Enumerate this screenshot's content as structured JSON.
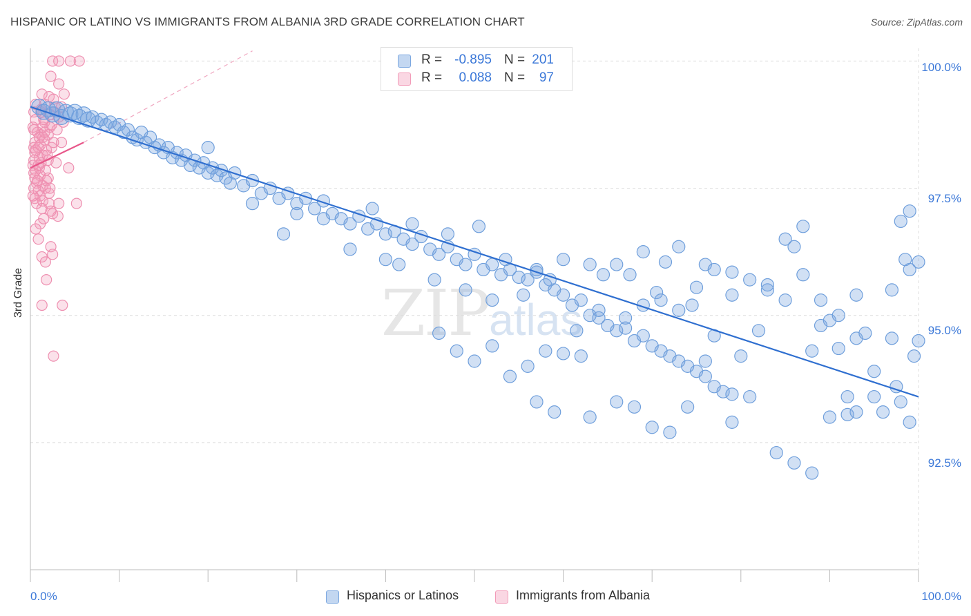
{
  "header": {
    "title": "HISPANIC OR LATINO VS IMMIGRANTS FROM ALBANIA 3RD GRADE CORRELATION CHART",
    "source": "Source: ZipAtlas.com"
  },
  "watermark": {
    "zip": "ZIP",
    "atlas": "atlas"
  },
  "legend": {
    "rows": [
      {
        "r_label": "R =",
        "r_value": "-0.895",
        "n_label": "N =",
        "n_value": "201",
        "color": "#7ba7e0"
      },
      {
        "r_label": "R =",
        "r_value": "0.088",
        "n_label": "N =",
        "n_value": "97",
        "color": "#f29bb8"
      }
    ]
  },
  "bottom_legend": {
    "series1": "Hispanics or Latinos",
    "series2": "Immigrants from Albania"
  },
  "colors": {
    "blue_fill": "rgba(123,167,224,0.35)",
    "blue_stroke": "#6f9fdc",
    "blue_line": "#2f6fd0",
    "pink_fill": "rgba(242,155,184,0.30)",
    "pink_stroke": "#ee8fb0",
    "pink_line": "#e8578a",
    "grid": "#dcdcdc",
    "tick_text": "#3b78d8"
  },
  "chart_data": {
    "type": "scatter",
    "title": "HISPANIC OR LATINO VS IMMIGRANTS FROM ALBANIA 3RD GRADE CORRELATION CHART",
    "xlabel": "",
    "ylabel": "3rd Grade",
    "xlim": [
      0,
      100
    ],
    "ylim": [
      90.0,
      100.25
    ],
    "x_tick_labels": [
      "0.0%",
      "100.0%"
    ],
    "y_ticks": [
      92.5,
      95.0,
      97.5,
      100.0
    ],
    "y_tick_labels": [
      "92.5%",
      "95.0%",
      "97.5%",
      "100.0%"
    ],
    "grid": true,
    "legend_position": "top-center",
    "series": [
      {
        "name": "Hispanics or Latinos",
        "R": -0.895,
        "N": 201,
        "trend": {
          "x": [
            0,
            100
          ],
          "y": [
            99.1,
            93.4
          ]
        },
        "points": [
          [
            1,
            99.1
          ],
          [
            1.5,
            99.0
          ],
          [
            2,
            99.05
          ],
          [
            2.5,
            98.95
          ],
          [
            3,
            99.05
          ],
          [
            3.5,
            98.9
          ],
          [
            4,
            99.0
          ],
          [
            4.5,
            98.95
          ],
          [
            5,
            99.0
          ],
          [
            5.5,
            98.9
          ],
          [
            6,
            98.95
          ],
          [
            6.5,
            98.85
          ],
          [
            7,
            98.9
          ],
          [
            7.5,
            98.8
          ],
          [
            8,
            98.85
          ],
          [
            8.5,
            98.75
          ],
          [
            9,
            98.8
          ],
          [
            9.5,
            98.7
          ],
          [
            10,
            98.75
          ],
          [
            10.5,
            98.6
          ],
          [
            11,
            98.65
          ],
          [
            11.5,
            98.5
          ],
          [
            12,
            98.45
          ],
          [
            12.5,
            98.6
          ],
          [
            13,
            98.4
          ],
          [
            13.5,
            98.5
          ],
          [
            14,
            98.3
          ],
          [
            14.5,
            98.35
          ],
          [
            15,
            98.2
          ],
          [
            15.5,
            98.3
          ],
          [
            16,
            98.1
          ],
          [
            16.5,
            98.2
          ],
          [
            17,
            98.05
          ],
          [
            17.5,
            98.15
          ],
          [
            18,
            97.95
          ],
          [
            18.5,
            98.05
          ],
          [
            19,
            97.9
          ],
          [
            19.5,
            98.0
          ],
          [
            20,
            97.8
          ],
          [
            20.5,
            97.9
          ],
          [
            21,
            97.75
          ],
          [
            21.5,
            97.85
          ],
          [
            22,
            97.7
          ],
          [
            22.5,
            97.6
          ],
          [
            23,
            97.8
          ],
          [
            24,
            97.55
          ],
          [
            25,
            97.65
          ],
          [
            26,
            97.4
          ],
          [
            27,
            97.5
          ],
          [
            28,
            97.3
          ],
          [
            29,
            97.4
          ],
          [
            30,
            97.2
          ],
          [
            31,
            97.3
          ],
          [
            32,
            97.1
          ],
          [
            33,
            97.25
          ],
          [
            34,
            97.0
          ],
          [
            35,
            96.9
          ],
          [
            36,
            96.8
          ],
          [
            37,
            96.95
          ],
          [
            38,
            96.7
          ],
          [
            39,
            96.8
          ],
          [
            40,
            96.6
          ],
          [
            41,
            96.65
          ],
          [
            42,
            96.5
          ],
          [
            43,
            96.4
          ],
          [
            44,
            96.55
          ],
          [
            45,
            96.3
          ],
          [
            46,
            96.2
          ],
          [
            47,
            96.35
          ],
          [
            48,
            96.1
          ],
          [
            49,
            96.0
          ],
          [
            50,
            96.2
          ],
          [
            51,
            95.9
          ],
          [
            52,
            96.0
          ],
          [
            53,
            95.8
          ],
          [
            54,
            95.9
          ],
          [
            55,
            95.75
          ],
          [
            56,
            95.7
          ],
          [
            57,
            95.85
          ],
          [
            58,
            95.6
          ],
          [
            59,
            95.5
          ],
          [
            60,
            95.4
          ],
          [
            61,
            95.2
          ],
          [
            62,
            95.3
          ],
          [
            63,
            95.0
          ],
          [
            64,
            94.95
          ],
          [
            65,
            94.8
          ],
          [
            66,
            94.7
          ],
          [
            67,
            94.75
          ],
          [
            68,
            94.5
          ],
          [
            69,
            94.6
          ],
          [
            70,
            94.4
          ],
          [
            71,
            94.3
          ],
          [
            72,
            94.2
          ],
          [
            73,
            94.1
          ],
          [
            74,
            94.0
          ],
          [
            75,
            93.9
          ],
          [
            76,
            93.8
          ],
          [
            77,
            93.6
          ],
          [
            78,
            93.5
          ],
          [
            79,
            93.45
          ],
          [
            20,
            98.3
          ],
          [
            25,
            97.2
          ],
          [
            28.5,
            96.6
          ],
          [
            30,
            97.0
          ],
          [
            33,
            96.9
          ],
          [
            36,
            96.3
          ],
          [
            38.5,
            97.1
          ],
          [
            40,
            96.1
          ],
          [
            41.5,
            96.0
          ],
          [
            43,
            96.8
          ],
          [
            45.5,
            95.7
          ],
          [
            47,
            96.6
          ],
          [
            49,
            95.5
          ],
          [
            50.5,
            96.75
          ],
          [
            52,
            95.3
          ],
          [
            53.5,
            96.1
          ],
          [
            55.5,
            95.4
          ],
          [
            57,
            95.9
          ],
          [
            58.5,
            95.7
          ],
          [
            60,
            96.1
          ],
          [
            61.5,
            94.7
          ],
          [
            63,
            96.0
          ],
          [
            64.5,
            95.8
          ],
          [
            66,
            96.0
          ],
          [
            67.5,
            95.8
          ],
          [
            69,
            96.25
          ],
          [
            70.5,
            95.45
          ],
          [
            71.5,
            96.05
          ],
          [
            73,
            96.35
          ],
          [
            74.5,
            95.2
          ],
          [
            76,
            96.0
          ],
          [
            77,
            95.9
          ],
          [
            79,
            95.85
          ],
          [
            80,
            94.2
          ],
          [
            81,
            95.7
          ],
          [
            82,
            94.7
          ],
          [
            83,
            95.5
          ],
          [
            85,
            95.3
          ],
          [
            86,
            96.35
          ],
          [
            87,
            96.75
          ],
          [
            88,
            94.3
          ],
          [
            89,
            94.8
          ],
          [
            90,
            94.9
          ],
          [
            91,
            94.35
          ],
          [
            92,
            93.4
          ],
          [
            93,
            94.55
          ],
          [
            94,
            94.65
          ],
          [
            95,
            93.9
          ],
          [
            96,
            93.1
          ],
          [
            97,
            94.55
          ],
          [
            97.5,
            93.6
          ],
          [
            98,
            93.3
          ],
          [
            99,
            92.9
          ],
          [
            99.5,
            94.2
          ],
          [
            57,
            93.3
          ],
          [
            59,
            93.1
          ],
          [
            63,
            93.0
          ],
          [
            66,
            93.3
          ],
          [
            68,
            93.2
          ],
          [
            70,
            92.8
          ],
          [
            72,
            92.7
          ],
          [
            74,
            93.2
          ],
          [
            76,
            94.1
          ],
          [
            79,
            92.9
          ],
          [
            81,
            93.4
          ],
          [
            84,
            92.3
          ],
          [
            86,
            92.1
          ],
          [
            88,
            91.9
          ],
          [
            90,
            93.0
          ],
          [
            92,
            93.05
          ],
          [
            93,
            93.1
          ],
          [
            95,
            93.4
          ],
          [
            97,
            95.5
          ],
          [
            98,
            96.85
          ],
          [
            99,
            97.05
          ],
          [
            100,
            96.05
          ],
          [
            100,
            94.5
          ],
          [
            99,
            95.9
          ],
          [
            98.5,
            96.1
          ],
          [
            89,
            95.3
          ],
          [
            91,
            95.0
          ],
          [
            93,
            95.4
          ],
          [
            85,
            96.5
          ],
          [
            87,
            95.8
          ],
          [
            83,
            95.6
          ],
          [
            79,
            95.4
          ],
          [
            77,
            94.6
          ],
          [
            75,
            95.55
          ],
          [
            73,
            95.1
          ],
          [
            71,
            95.3
          ],
          [
            69,
            95.2
          ],
          [
            67,
            94.95
          ],
          [
            64,
            95.1
          ],
          [
            62,
            94.2
          ],
          [
            60,
            94.25
          ],
          [
            58,
            94.3
          ],
          [
            56,
            94.0
          ],
          [
            54,
            93.8
          ],
          [
            52,
            94.4
          ],
          [
            50,
            94.1
          ],
          [
            48,
            94.3
          ],
          [
            46,
            94.65
          ]
        ]
      },
      {
        "name": "Immigrants from Albania",
        "R": 0.088,
        "N": 97,
        "trend": {
          "x": [
            0,
            6
          ],
          "y": [
            97.9,
            98.4
          ]
        },
        "trend_extension": {
          "x": [
            6,
            25
          ],
          "y": [
            98.4,
            100.2
          ]
        },
        "points": [
          [
            2.5,
            100.0
          ],
          [
            3.2,
            100.0
          ],
          [
            4.5,
            100.0
          ],
          [
            5.5,
            100.0
          ],
          [
            2.3,
            99.7
          ],
          [
            3.2,
            99.55
          ],
          [
            1.3,
            99.35
          ],
          [
            2.1,
            99.3
          ],
          [
            3.8,
            99.35
          ],
          [
            2.6,
            99.25
          ],
          [
            0.6,
            99.15
          ],
          [
            1.6,
            99.15
          ],
          [
            2.8,
            99.1
          ],
          [
            0.4,
            99.0
          ],
          [
            1.2,
            99.0
          ],
          [
            2.2,
            98.95
          ],
          [
            3.2,
            98.9
          ],
          [
            0.6,
            98.85
          ],
          [
            1.6,
            98.8
          ],
          [
            2.4,
            98.75
          ],
          [
            0.3,
            98.7
          ],
          [
            1.4,
            98.7
          ],
          [
            2.2,
            98.7
          ],
          [
            3.0,
            98.65
          ],
          [
            0.8,
            98.6
          ],
          [
            1.2,
            98.55
          ],
          [
            2.0,
            98.55
          ],
          [
            1.4,
            98.5
          ],
          [
            0.5,
            98.4
          ],
          [
            1.6,
            98.45
          ],
          [
            3.5,
            98.4
          ],
          [
            0.4,
            98.3
          ],
          [
            0.9,
            98.3
          ],
          [
            1.8,
            98.25
          ],
          [
            2.4,
            98.3
          ],
          [
            0.5,
            98.2
          ],
          [
            1.4,
            98.15
          ],
          [
            1.0,
            98.1
          ],
          [
            0.4,
            98.05
          ],
          [
            1.2,
            98.0
          ],
          [
            2.0,
            98.05
          ],
          [
            0.3,
            97.95
          ],
          [
            1.0,
            97.9
          ],
          [
            0.6,
            97.85
          ],
          [
            1.7,
            97.85
          ],
          [
            0.4,
            97.8
          ],
          [
            1.1,
            97.75
          ],
          [
            0.5,
            97.7
          ],
          [
            2.0,
            97.7
          ],
          [
            0.7,
            97.6
          ],
          [
            1.4,
            97.55
          ],
          [
            0.4,
            97.5
          ],
          [
            1.7,
            97.5
          ],
          [
            0.9,
            97.45
          ],
          [
            2.1,
            97.4
          ],
          [
            1.1,
            97.35
          ],
          [
            0.5,
            97.3
          ],
          [
            1.4,
            97.25
          ],
          [
            0.7,
            97.2
          ],
          [
            2.1,
            97.2
          ],
          [
            3.2,
            97.2
          ],
          [
            5.2,
            97.2
          ],
          [
            1.3,
            97.1
          ],
          [
            2.5,
            97.0
          ],
          [
            3.1,
            96.95
          ],
          [
            1.1,
            96.8
          ],
          [
            0.6,
            96.7
          ],
          [
            0.9,
            96.5
          ],
          [
            2.3,
            96.35
          ],
          [
            1.3,
            96.15
          ],
          [
            2.5,
            96.2
          ],
          [
            1.7,
            96.05
          ],
          [
            1.8,
            95.7
          ],
          [
            1.3,
            95.2
          ],
          [
            3.6,
            95.2
          ],
          [
            2.6,
            94.2
          ],
          [
            4.3,
            97.9
          ],
          [
            1.0,
            98.5
          ],
          [
            0.6,
            98.25
          ],
          [
            1.8,
            97.65
          ],
          [
            2.9,
            98.0
          ],
          [
            0.4,
            98.65
          ],
          [
            1.5,
            98.85
          ],
          [
            2.7,
            99.0
          ],
          [
            3.7,
            98.8
          ],
          [
            1.1,
            98.35
          ],
          [
            0.8,
            97.65
          ],
          [
            2.3,
            97.05
          ],
          [
            1.5,
            96.9
          ],
          [
            0.3,
            97.35
          ],
          [
            1.9,
            98.15
          ],
          [
            2.6,
            98.4
          ],
          [
            1.2,
            99.05
          ],
          [
            0.9,
            97.95
          ],
          [
            2.2,
            97.5
          ],
          [
            1.6,
            98.6
          ],
          [
            3.5,
            99.1
          ]
        ]
      }
    ]
  }
}
